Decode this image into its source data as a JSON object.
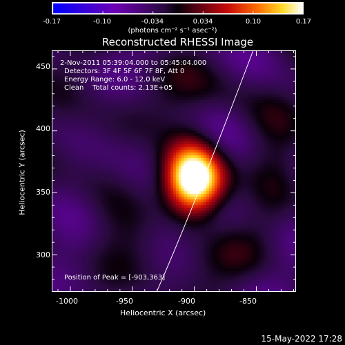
{
  "colorbar": {
    "ticks": [
      "-0.17",
      "-0.10",
      "-0.034",
      "0.034",
      "0.10",
      "0.17"
    ],
    "units": "(photons cm⁻² s⁻¹ asec⁻²)"
  },
  "title": "Reconstructed RHESSI Image",
  "info": {
    "time_range": "2-Nov-2011 05:39:04.000 to 05:45:04.000",
    "detectors": "Detectors: 3F 4F 5F 6F 7F 8F, Att 0",
    "energy": "Energy Range: 6.0 - 12.0 keV",
    "clean": "Clean    Total counts: 2.13E+05",
    "peak": "Position of Peak = [-903,363]"
  },
  "axes": {
    "xlabel": "Heliocentric X (arcsec)",
    "ylabel": "Heliocentric Y (arcsec)",
    "xticks": [
      "-1000",
      "-950",
      "-900",
      "-850"
    ],
    "yticks": [
      "300",
      "350",
      "400",
      "450"
    ],
    "xlim": [
      -1015,
      -818
    ],
    "ylim": [
      270,
      465
    ]
  },
  "peak_position": [
    -903,
    363
  ],
  "footer": "15-May-2022 17:28"
}
